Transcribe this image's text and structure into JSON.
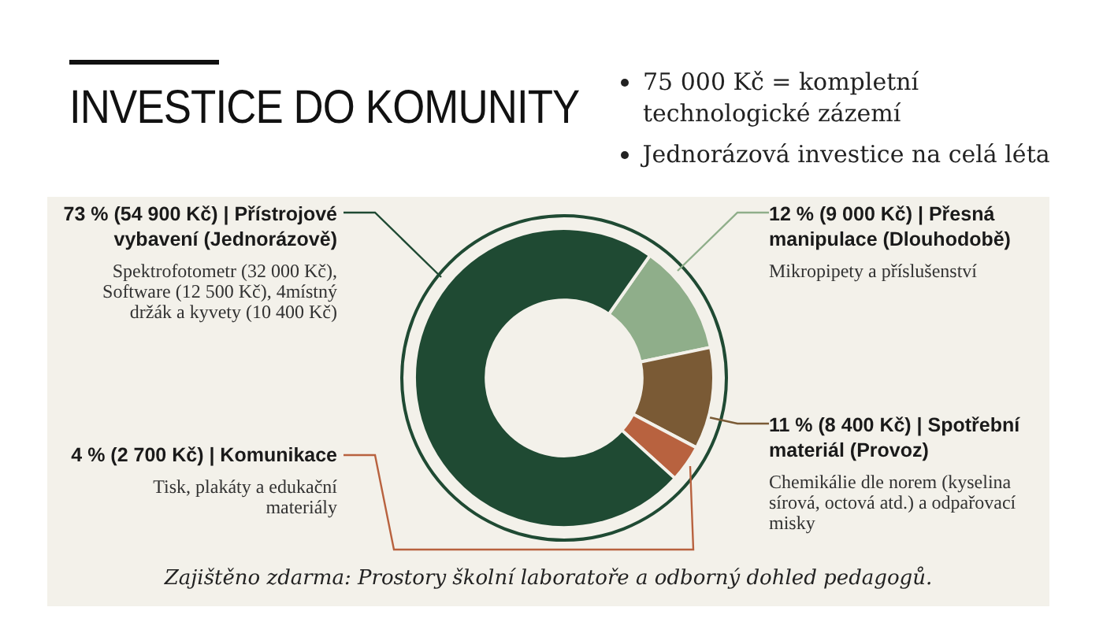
{
  "chart_data": {
    "type": "donut",
    "title": "INVESTICE DO KOMUNITY",
    "categories": [
      "12 % (9 000 Kč) | Přesná manipulace (Dlouhodobě)",
      "11 % (8 400 Kč) | Spotřební materiál (Provoz)",
      "4 % (2 700 Kč) | Komunikace",
      "73 % (54 900 Kč) | Přístrojové vybavení (Jednorázově)"
    ],
    "values": [
      12,
      11,
      4,
      73
    ],
    "colors": [
      "#8fae8a",
      "#7a5a35",
      "#b8623f",
      "#1f4a33"
    ],
    "annotations": [
      "75 000 Kč = kompletní technologické zázemí",
      "Jednorázová investice na celá léta",
      "Mikropipety a příslušenství",
      "Chemikálie dle norem (kyselina sírová, octová atd.) a odpařovací misky",
      "Tisk, plakáty a edukační materiály",
      "Spektrofotometr (32 000 Kč), Software (12 500 Kč), 4místný držák a kyvety (10 400 Kč)",
      "Zajištěno zdarma: Prostory školní laboratoře a odborný dohled pedagogů."
    ],
    "legend": false
  }
}
